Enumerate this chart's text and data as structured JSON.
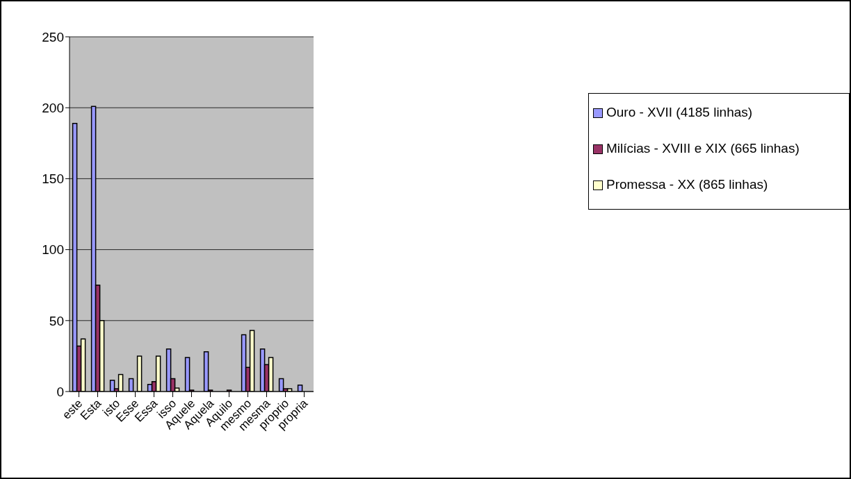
{
  "chart_data": {
    "type": "bar",
    "categories": [
      "este",
      "Esta",
      "isto",
      "Esse",
      "Essa",
      "isso",
      "Aquele",
      "Aquela",
      "Aquilo",
      "mesmo",
      "mesma",
      "proprio",
      "propria"
    ],
    "series": [
      {
        "name": "Ouro - XVII (4185 linhas)",
        "color": "#9999ff",
        "values": [
          189,
          201,
          8,
          9,
          5,
          30,
          24,
          28,
          0,
          40,
          30,
          9,
          4.5
        ]
      },
      {
        "name": "Milícias - XVIII e XIX (665 linhas)",
        "color": "#993366",
        "values": [
          32,
          75,
          2,
          0,
          7,
          9,
          1,
          1,
          1,
          17,
          19,
          2,
          0
        ]
      },
      {
        "name": "Promessa - XX (865 linhas)",
        "color": "#ffffcc",
        "values": [
          37,
          50,
          12,
          25,
          25,
          2.5,
          0,
          0,
          0,
          43,
          24,
          2,
          0
        ]
      }
    ],
    "ylim": [
      0,
      250
    ],
    "yticks": [
      0,
      50,
      100,
      150,
      200,
      250
    ],
    "grid": "y",
    "legend": "right"
  }
}
